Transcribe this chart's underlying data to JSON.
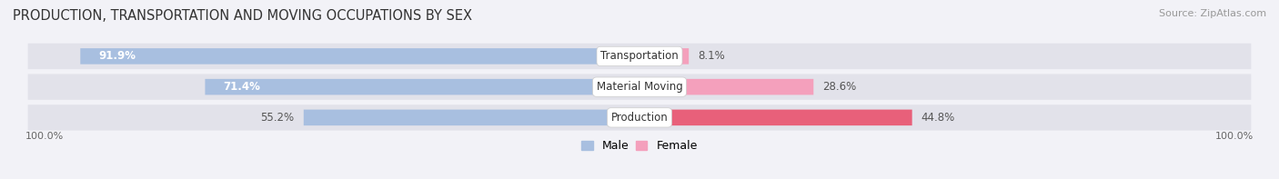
{
  "title": "PRODUCTION, TRANSPORTATION AND MOVING OCCUPATIONS BY SEX",
  "source": "Source: ZipAtlas.com",
  "categories": [
    "Transportation",
    "Material Moving",
    "Production"
  ],
  "male_values": [
    91.9,
    71.4,
    55.2
  ],
  "female_values": [
    8.1,
    28.6,
    44.8
  ],
  "male_color": "#a8bfe0",
  "female_color": "#f4a0bc",
  "female_color_production": "#e8607a",
  "background_color": "#f2f2f7",
  "bar_bg_color": "#e2e2ea",
  "axis_label_left": "100.0%",
  "axis_label_right": "100.0%",
  "title_fontsize": 10.5,
  "source_fontsize": 8,
  "bar_label_fontsize": 8.5,
  "cat_label_fontsize": 8.5,
  "legend_fontsize": 9
}
